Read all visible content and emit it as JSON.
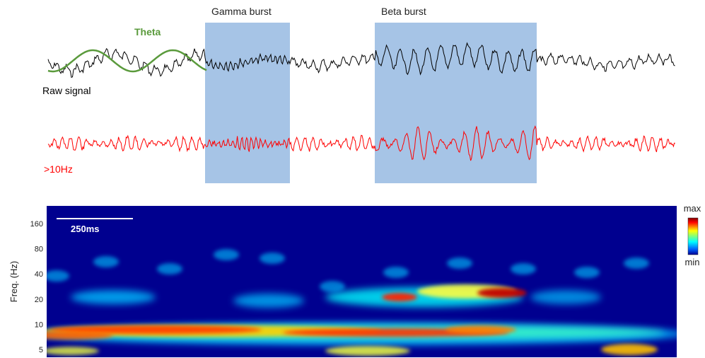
{
  "chart_data": [
    {
      "type": "line",
      "panel": "time-series traces",
      "series": [
        {
          "name": "Raw signal",
          "color": "#000000"
        },
        {
          "name": "Theta",
          "color": "#5a9a3c"
        },
        {
          "name": ">10Hz",
          "color": "#ff0000"
        }
      ],
      "annotations": [
        {
          "label": "Gamma burst",
          "color": "#a6c4e6"
        },
        {
          "label": "Beta burst",
          "color": "#a6c4e6"
        }
      ]
    },
    {
      "type": "heatmap",
      "panel": "time-frequency spectrogram",
      "ylabel": "Freq. (Hz)",
      "y_scale": "log",
      "yticks": [
        5,
        10,
        20,
        40,
        80,
        160
      ],
      "ytick_labels": [
        "5",
        "10",
        "20",
        "40",
        "80",
        "160"
      ],
      "scalebar": "250ms",
      "colorbar": {
        "max_label": "max",
        "min_label": "min",
        "colormap": "jet"
      }
    }
  ]
}
